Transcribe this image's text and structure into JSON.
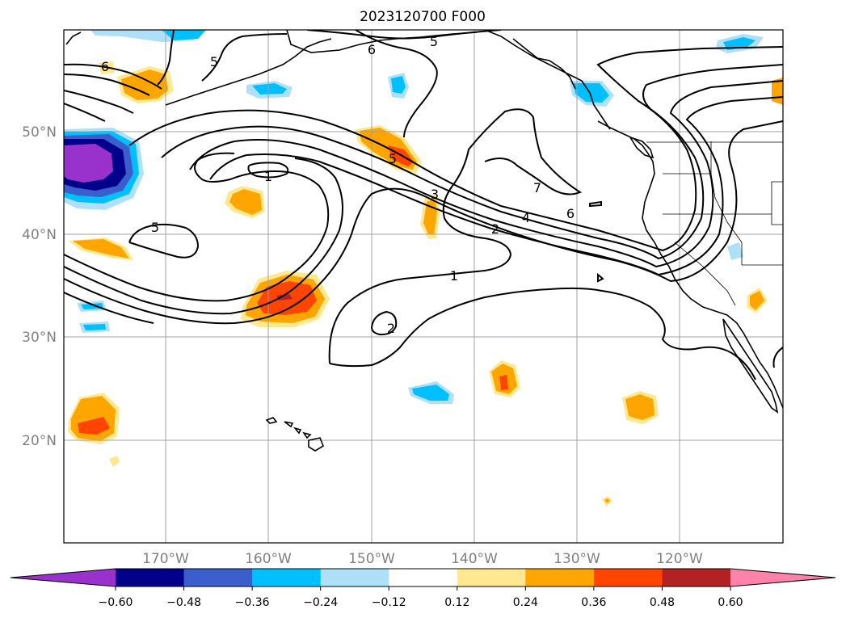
{
  "title": "2023120700 F000",
  "map": {
    "lat_labels": [
      "50°N",
      "40°N",
      "30°N",
      "20°N"
    ],
    "lon_labels": [
      "170°W",
      "160°W",
      "150°W",
      "140°W",
      "130°W",
      "120°W"
    ],
    "contour_labels": [
      "6",
      "5",
      "6",
      "5",
      "1",
      "5",
      "5",
      "3",
      "7",
      "6",
      "4",
      "2",
      "1",
      "2"
    ]
  },
  "colorbar": {
    "ticks": [
      "−0.60",
      "−0.48",
      "−0.36",
      "−0.24",
      "−0.12",
      "0.12",
      "0.24",
      "0.36",
      "0.48",
      "0.60"
    ],
    "colors": [
      "#9932cc",
      "#00008b",
      "#3a5fcd",
      "#00bfff",
      "#aee1f9",
      "#ffffff",
      "#ffe88f",
      "#ffa500",
      "#ff4500",
      "#b22222",
      "#ff82ab"
    ]
  },
  "colors": {
    "purple": "#9932cc",
    "navy": "#00008b",
    "royal_blue": "#3a5fcd",
    "deep_sky": "#00bfff",
    "light_blue": "#aee1f9",
    "light_yellow": "#ffe88f",
    "orange": "#ffa500",
    "orange_red": "#ff4500",
    "firebrick": "#b22222",
    "pink": "#ff82ab"
  }
}
